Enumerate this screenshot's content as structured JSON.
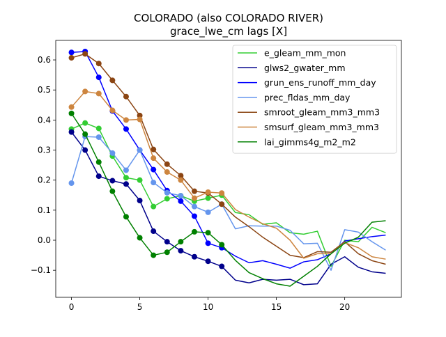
{
  "chart_data": {
    "type": "line",
    "title": "COLORADO (also COLORADO RIVER)",
    "subtitle": "grace_lwe_cm lags [X]",
    "xlabel": "",
    "ylabel": "",
    "xlim": [
      -1.15,
      24.15
    ],
    "ylim": [
      -0.19,
      0.665
    ],
    "xticks": [
      0,
      5,
      10,
      15,
      20
    ],
    "yticks": [
      -0.1,
      0.0,
      0.1,
      0.2,
      0.3,
      0.4,
      0.5,
      0.6
    ],
    "ytick_labels": [
      "−0.1",
      "0.0",
      "0.1",
      "0.2",
      "0.3",
      "0.4",
      "0.5",
      "0.6"
    ],
    "grid": false,
    "legend_position": "top-right",
    "x": [
      0,
      1,
      2,
      3,
      4,
      5,
      6,
      7,
      8,
      9,
      10,
      11,
      12,
      13,
      14,
      15,
      16,
      17,
      18,
      19,
      20,
      21,
      22,
      23
    ],
    "marker_count": 12,
    "series": [
      {
        "name": "e_gleam_mm_mon",
        "color": "#32cd32",
        "values": [
          0.37,
          0.39,
          0.372,
          0.28,
          0.208,
          0.2,
          0.112,
          0.138,
          0.148,
          0.13,
          0.14,
          0.15,
          0.092,
          0.085,
          0.053,
          0.058,
          0.025,
          0.02,
          0.03,
          -0.087,
          0.0,
          -0.005,
          0.043,
          0.025
        ]
      },
      {
        "name": "glws2_gwater_mm",
        "color": "#00008b",
        "values": [
          0.36,
          0.3,
          0.213,
          0.198,
          0.187,
          0.132,
          0.03,
          -0.005,
          -0.035,
          -0.055,
          -0.07,
          -0.087,
          -0.133,
          -0.142,
          -0.13,
          -0.133,
          -0.13,
          -0.148,
          -0.145,
          -0.08,
          -0.055,
          -0.09,
          -0.105,
          -0.11
        ]
      },
      {
        "name": "grun_ens_runoff_mm_day",
        "color": "#0000ff",
        "values": [
          0.625,
          0.628,
          0.542,
          0.43,
          0.37,
          0.3,
          0.235,
          0.165,
          0.13,
          0.08,
          -0.01,
          -0.025,
          -0.053,
          -0.075,
          -0.068,
          -0.08,
          -0.093,
          -0.072,
          -0.065,
          -0.045,
          -0.003,
          0.005,
          0.012,
          0.017
        ]
      },
      {
        "name": "prec_fldas_mm_day",
        "color": "#6495ed",
        "values": [
          0.19,
          0.345,
          0.343,
          0.29,
          0.233,
          0.3,
          0.192,
          0.158,
          0.148,
          0.112,
          0.093,
          0.12,
          0.038,
          0.048,
          0.047,
          0.047,
          0.033,
          -0.012,
          -0.01,
          -0.1,
          0.035,
          0.027,
          -0.005,
          -0.033
        ]
      },
      {
        "name": "smroot_gleam_mm3_mm3",
        "color": "#8b4513",
        "values": [
          0.607,
          0.62,
          0.588,
          0.532,
          0.478,
          0.415,
          0.302,
          0.253,
          0.215,
          0.163,
          0.157,
          0.12,
          0.077,
          0.045,
          0.01,
          -0.02,
          -0.05,
          -0.058,
          -0.038,
          -0.04,
          -0.005,
          -0.045,
          -0.068,
          -0.08
        ]
      },
      {
        "name": "smsurf_gleam_mm3_mm3",
        "color": "#cd853f",
        "values": [
          0.443,
          0.495,
          0.488,
          0.432,
          0.4,
          0.402,
          0.273,
          0.227,
          0.2,
          0.14,
          0.16,
          0.157,
          0.102,
          0.077,
          0.055,
          0.04,
          0.0,
          -0.06,
          -0.045,
          -0.045,
          -0.008,
          -0.025,
          -0.055,
          -0.063
        ]
      },
      {
        "name": "lai_gimms4g_m2_m2",
        "color": "#008000",
        "values": [
          0.422,
          0.353,
          0.26,
          0.163,
          0.078,
          0.008,
          -0.05,
          -0.04,
          -0.005,
          0.028,
          0.025,
          -0.015,
          -0.067,
          -0.108,
          -0.128,
          -0.145,
          -0.153,
          -0.12,
          -0.087,
          -0.045,
          -0.01,
          0.01,
          0.06,
          0.065
        ]
      }
    ]
  }
}
